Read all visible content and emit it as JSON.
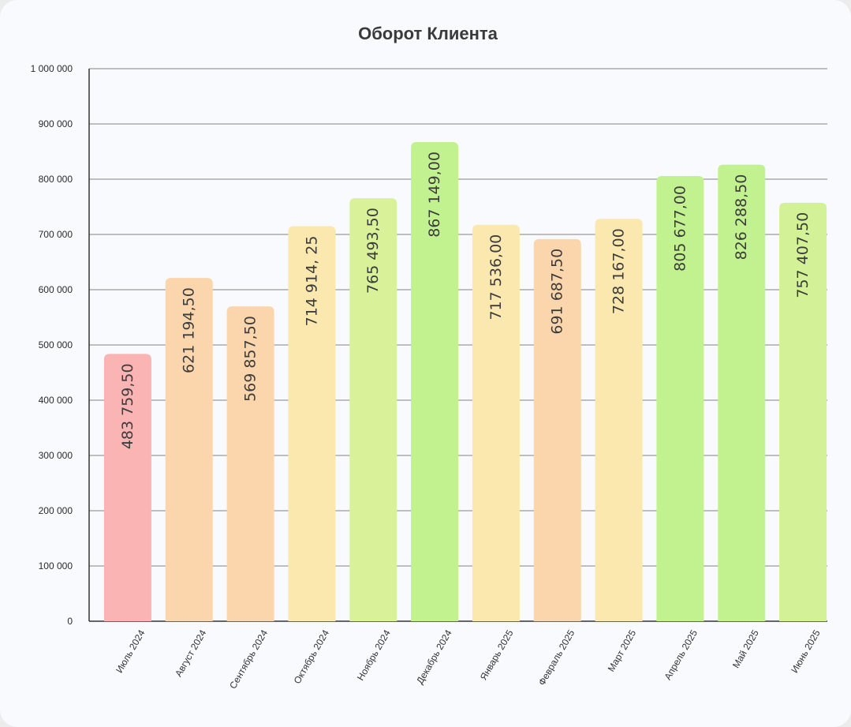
{
  "chart_data": {
    "type": "bar",
    "title": "Оборот Клиента",
    "xlabel": "",
    "ylabel": "",
    "ylim": [
      0,
      1000000
    ],
    "yticks": [
      "0",
      "100 000",
      "200 000",
      "300 000",
      "400 000",
      "500 000",
      "600 000",
      "700 000",
      "800 000",
      "900 000",
      "1 000 000"
    ],
    "grid": true,
    "legend": "none",
    "categories": [
      "Июль 2024",
      "Август 2024",
      "Сентябрь 2024",
      "Октябрь 2024",
      "Ноябрь 2024",
      "Декабрь 2024",
      "Январь 2025",
      "Февраль 2025",
      "Март 2025",
      "Апрель 2025",
      "Май 2025",
      "Июнь 2025"
    ],
    "values": [
      483759.5,
      621194.5,
      569857.5,
      714914.25,
      765493.5,
      867149.0,
      717536.0,
      691687.5,
      728167.0,
      805677.0,
      826288.5,
      757407.5
    ],
    "data_labels": [
      "483 759,50",
      "621 194,50",
      "569 857,50",
      "714 914, 25",
      "765 493,50",
      "867 149,00",
      "717 536,00",
      "691 687,50",
      "728 167,00",
      "805 677,00",
      "826 288,50",
      "757 407,50"
    ],
    "colors": [
      "#fbb4b4",
      "#fbd5ab",
      "#fbd5ab",
      "#fbe8ae",
      "#d9f29a",
      "#c1f28f",
      "#fbe8ae",
      "#fbd5ab",
      "#fbe8ae",
      "#c1f28f",
      "#c1f28f",
      "#d3f298"
    ]
  }
}
